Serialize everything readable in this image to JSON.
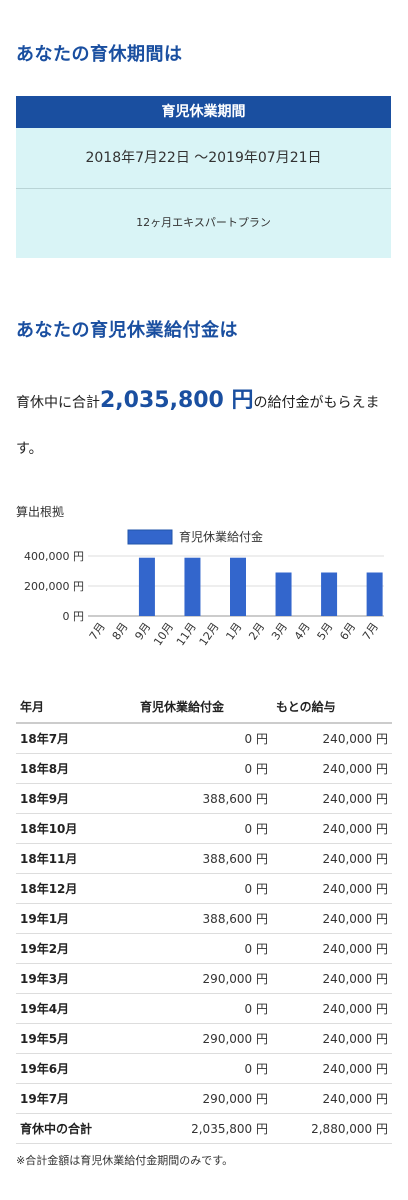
{
  "section1": {
    "title": "あなたの育休期間は",
    "box_header": "育児休業期間",
    "dates": "2018年7月22日 〜2019年07月21日",
    "plan": "12ヶ月エキスパートプラン"
  },
  "section2": {
    "title": "あなたの育児休業給付金は",
    "summary_prefix": "育休中に合計",
    "summary_amount": "2,035,800 円",
    "summary_suffix": "の給付金がもらえます。"
  },
  "basis_label": "算出根拠",
  "colors": {
    "accent": "#1a4fa0",
    "bar": "#3366cc",
    "box_bg": "#d9f4f6"
  },
  "chart_data": {
    "type": "bar",
    "legend": "育児休業給付金",
    "categories": [
      "7月",
      "8月",
      "9月",
      "10月",
      "11月",
      "12月",
      "1月",
      "2月",
      "3月",
      "4月",
      "5月",
      "6月",
      "7月"
    ],
    "values": [
      0,
      0,
      388600,
      0,
      388600,
      0,
      388600,
      0,
      290000,
      0,
      290000,
      0,
      290000
    ],
    "yticks": [
      "0 円",
      "200,000 円",
      "400,000 円"
    ],
    "ytick_values": [
      0,
      200000,
      400000
    ],
    "ylim": [
      0,
      400000
    ],
    "grid": true,
    "legend_position": "top-center"
  },
  "table": {
    "headers": [
      "年月",
      "育児休業給付金",
      "もとの給与"
    ],
    "rows": [
      [
        "18年7月",
        "0 円",
        "240,000 円"
      ],
      [
        "18年8月",
        "0 円",
        "240,000 円"
      ],
      [
        "18年9月",
        "388,600 円",
        "240,000 円"
      ],
      [
        "18年10月",
        "0 円",
        "240,000 円"
      ],
      [
        "18年11月",
        "388,600 円",
        "240,000 円"
      ],
      [
        "18年12月",
        "0 円",
        "240,000 円"
      ],
      [
        "19年1月",
        "388,600 円",
        "240,000 円"
      ],
      [
        "19年2月",
        "0 円",
        "240,000 円"
      ],
      [
        "19年3月",
        "290,000 円",
        "240,000 円"
      ],
      [
        "19年4月",
        "0 円",
        "240,000 円"
      ],
      [
        "19年5月",
        "290,000 円",
        "240,000 円"
      ],
      [
        "19年6月",
        "0 円",
        "240,000 円"
      ],
      [
        "19年7月",
        "290,000 円",
        "240,000 円"
      ]
    ],
    "total": [
      "育休中の合計",
      "2,035,800 円",
      "2,880,000 円"
    ]
  },
  "note": "※合計金額は育児休業給付金期間のみです。"
}
